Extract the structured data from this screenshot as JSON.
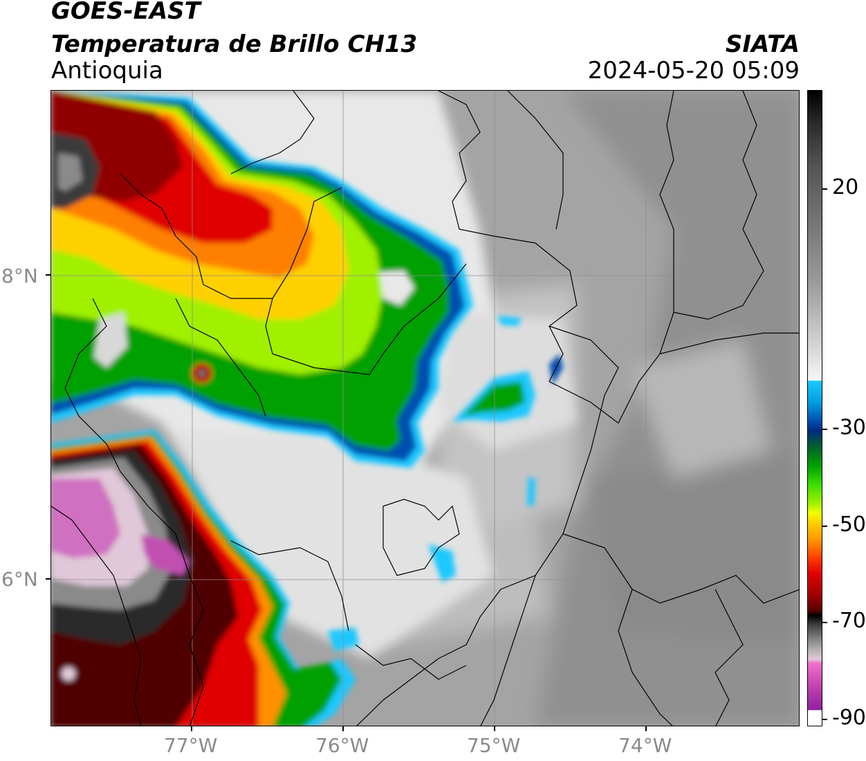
{
  "header": {
    "title": "GOES-EAST",
    "subtitle": "Temperatura de Brillo CH13",
    "region": "Antioquia",
    "organization": "SIATA",
    "datetime": "2024-05-20 05:09"
  },
  "axes": {
    "lat_labels": [
      "8°N",
      "6°N"
    ],
    "lon_labels": [
      "77°W",
      "76°W",
      "75°W",
      "74°W"
    ]
  },
  "colorbar": {
    "labels": [
      "20",
      "-30",
      "-50",
      "-70",
      "-90"
    ],
    "palette": {
      "warm_gray": "#a9a9a9",
      "cold_blue": "#0050b0",
      "green": "#00b000",
      "yellow": "#f0ff00",
      "orange": "#ff8000",
      "red": "#e00000",
      "dark_red": "#800000",
      "magenta": "#c040b0"
    }
  },
  "map": {
    "gridlines": true,
    "borders": true
  }
}
